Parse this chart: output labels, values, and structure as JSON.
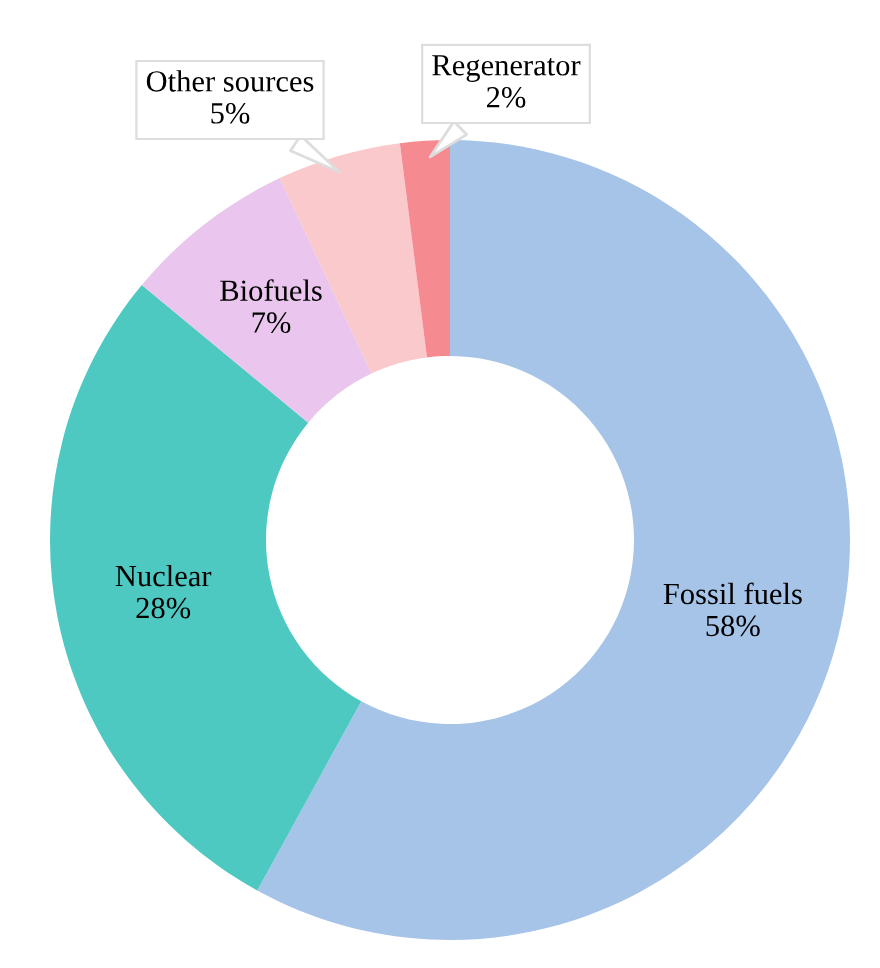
{
  "chart_data": {
    "type": "donut",
    "categories": [
      "Fossil fuels",
      "Nuclear",
      "Biofuels",
      "Other sources",
      "Regenerator"
    ],
    "values": [
      58,
      28,
      7,
      5,
      2
    ],
    "value_labels": [
      "58%",
      "28%",
      "7%",
      "5%",
      "2%"
    ],
    "colors": [
      "#a6c4e8",
      "#4ec9c2",
      "#eac6ee",
      "#f9c9cb",
      "#f58b90"
    ]
  }
}
